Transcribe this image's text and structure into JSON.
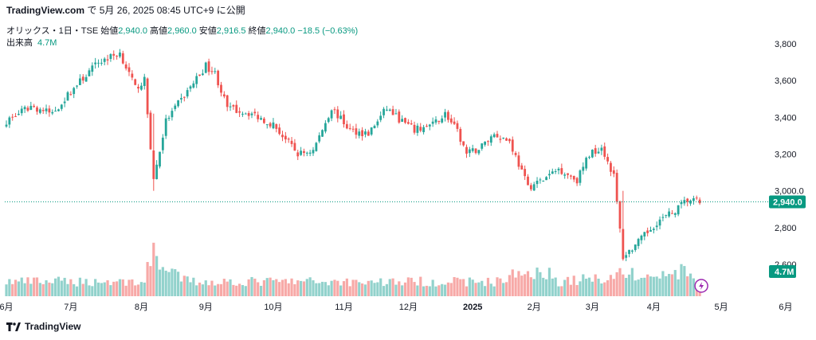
{
  "header": {
    "brand": "TradingView.com",
    "timestamp": "で 5月 26, 2025 08:45 UTC+9 に公開"
  },
  "symbol": {
    "name": "オリックス・1日・TSE",
    "open_label": "始値",
    "open": "2,940.0",
    "high_label": "高値",
    "high": "2,960.0",
    "low_label": "安値",
    "low": "2,916.5",
    "close_label": "終値",
    "close": "2,940.0",
    "change": "−18.5 (−0.63%)"
  },
  "volume": {
    "label": "出来高",
    "value": "4.7M"
  },
  "footer": {
    "brand": "TradingView",
    "logo_icon": "tradingview-logo-icon"
  },
  "colors": {
    "up": "#26a69a",
    "down": "#ef5350",
    "up_volume": "#92d2cc",
    "down_volume": "#f7a9a7",
    "price_badge": "#089981"
  },
  "chart_data": {
    "type": "candlestick",
    "series_anchor_closes": [
      [
        0,
        3380
      ],
      [
        8,
        3460
      ],
      [
        15,
        3420
      ],
      [
        22,
        3560
      ],
      [
        30,
        3700
      ],
      [
        37,
        3750
      ],
      [
        42,
        3560
      ],
      [
        45,
        3600
      ],
      [
        48,
        3060
      ],
      [
        52,
        3380
      ],
      [
        58,
        3520
      ],
      [
        65,
        3680
      ],
      [
        68,
        3640
      ],
      [
        72,
        3450
      ],
      [
        80,
        3420
      ],
      [
        87,
        3360
      ],
      [
        95,
        3200
      ],
      [
        100,
        3220
      ],
      [
        106,
        3450
      ],
      [
        112,
        3330
      ],
      [
        118,
        3310
      ],
      [
        124,
        3450
      ],
      [
        128,
        3390
      ],
      [
        133,
        3330
      ],
      [
        139,
        3360
      ],
      [
        143,
        3420
      ],
      [
        147,
        3320
      ],
      [
        150,
        3200
      ],
      [
        154,
        3230
      ],
      [
        159,
        3310
      ],
      [
        164,
        3270
      ],
      [
        170,
        3020
      ],
      [
        175,
        3060
      ],
      [
        180,
        3120
      ],
      [
        186,
        3060
      ],
      [
        190,
        3200
      ],
      [
        194,
        3240
      ],
      [
        198,
        3080
      ],
      [
        201,
        2640
      ],
      [
        206,
        2720
      ],
      [
        212,
        2830
      ],
      [
        217,
        2880
      ],
      [
        222,
        2950
      ],
      [
        226,
        2940
      ]
    ],
    "volume_levels": [
      [
        0,
        0.3
      ],
      [
        45,
        0.3
      ],
      [
        48,
        1.0
      ],
      [
        52,
        0.5
      ],
      [
        60,
        0.3
      ],
      [
        160,
        0.3
      ],
      [
        166,
        0.45
      ],
      [
        175,
        0.55
      ],
      [
        180,
        0.3
      ],
      [
        198,
        0.4
      ],
      [
        201,
        0.55
      ],
      [
        205,
        0.4
      ],
      [
        212,
        0.4
      ],
      [
        220,
        0.5
      ],
      [
        226,
        0.3
      ]
    ],
    "y_ticks": [
      "3,800",
      "3,600",
      "3,400",
      "3,200",
      "3,000.0",
      "2,800",
      "2,600"
    ],
    "y_tick_values": [
      3800,
      3600,
      3400,
      3200,
      3000,
      2800,
      2600
    ],
    "ylim": [
      2560,
      3880
    ],
    "x_ticks": [
      "6月",
      "7月",
      "8月",
      "9月",
      "10月",
      "11月",
      "12月",
      "2025",
      "2月",
      "3月",
      "4月",
      "5月",
      "6月"
    ],
    "x_tick_days": [
      8,
      29,
      52,
      73,
      95,
      118,
      139,
      160,
      180,
      199,
      219,
      241,
      262
    ],
    "x_days_total": 240,
    "last_price": 2940,
    "last_price_label": "2,940.0",
    "last_volume_label": "4.7M",
    "grid": false
  }
}
